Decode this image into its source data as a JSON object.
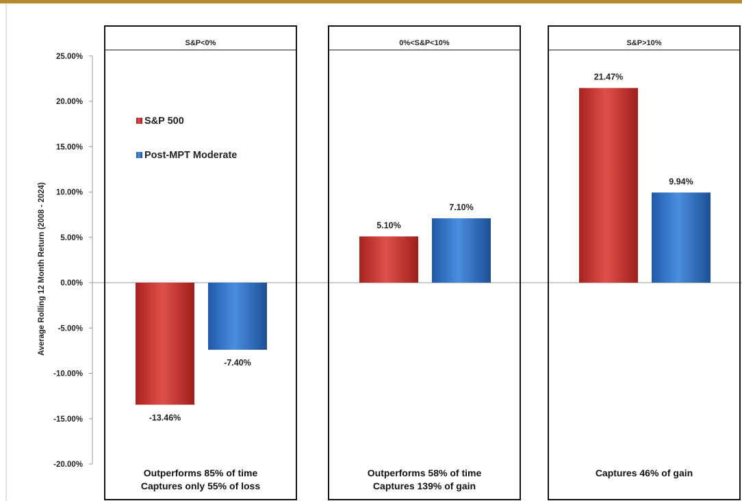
{
  "chart_data": {
    "type": "bar",
    "title": "",
    "xlabel": "",
    "ylabel": "Average Rolling 12 Month Return (2008 - 2024)",
    "ylim": [
      -20,
      25
    ],
    "ytick_step": 5,
    "ytick_labels": [
      "25.00%",
      "20.00%",
      "15.00%",
      "10.00%",
      "5.00%",
      "0.00%",
      "-5.00%",
      "-10.00%",
      "-15.00%",
      "-20.00%"
    ],
    "grid": false,
    "legend_position": "upper-left",
    "categories": [
      "S&P<0%",
      "0%<S&P<10%",
      "S&P>10%"
    ],
    "series": [
      {
        "name": "S&P 500",
        "color": "#c9302c",
        "values": [
          -13.46,
          5.1,
          21.47
        ],
        "labels": [
          "-13.46%",
          "5.10%",
          "21.47%"
        ]
      },
      {
        "name": "Post-MPT Moderate",
        "color": "#2f6fc4",
        "values": [
          -7.4,
          7.1,
          9.94
        ],
        "labels": [
          "-7.40%",
          "7.10%",
          "9.94%"
        ]
      }
    ],
    "panel_notes": [
      [
        "Outperforms 85% of time",
        "Captures only 55% of loss"
      ],
      [
        "Outperforms 58% of time",
        "Captures 139% of gain"
      ],
      [
        "Captures 46% of gain"
      ]
    ]
  },
  "colors": {
    "top_border": "#b58b2e",
    "panel_border": "#111111",
    "axis_line": "#999999",
    "sp500": "#c9302c",
    "post_mpt": "#2f6fc4"
  }
}
